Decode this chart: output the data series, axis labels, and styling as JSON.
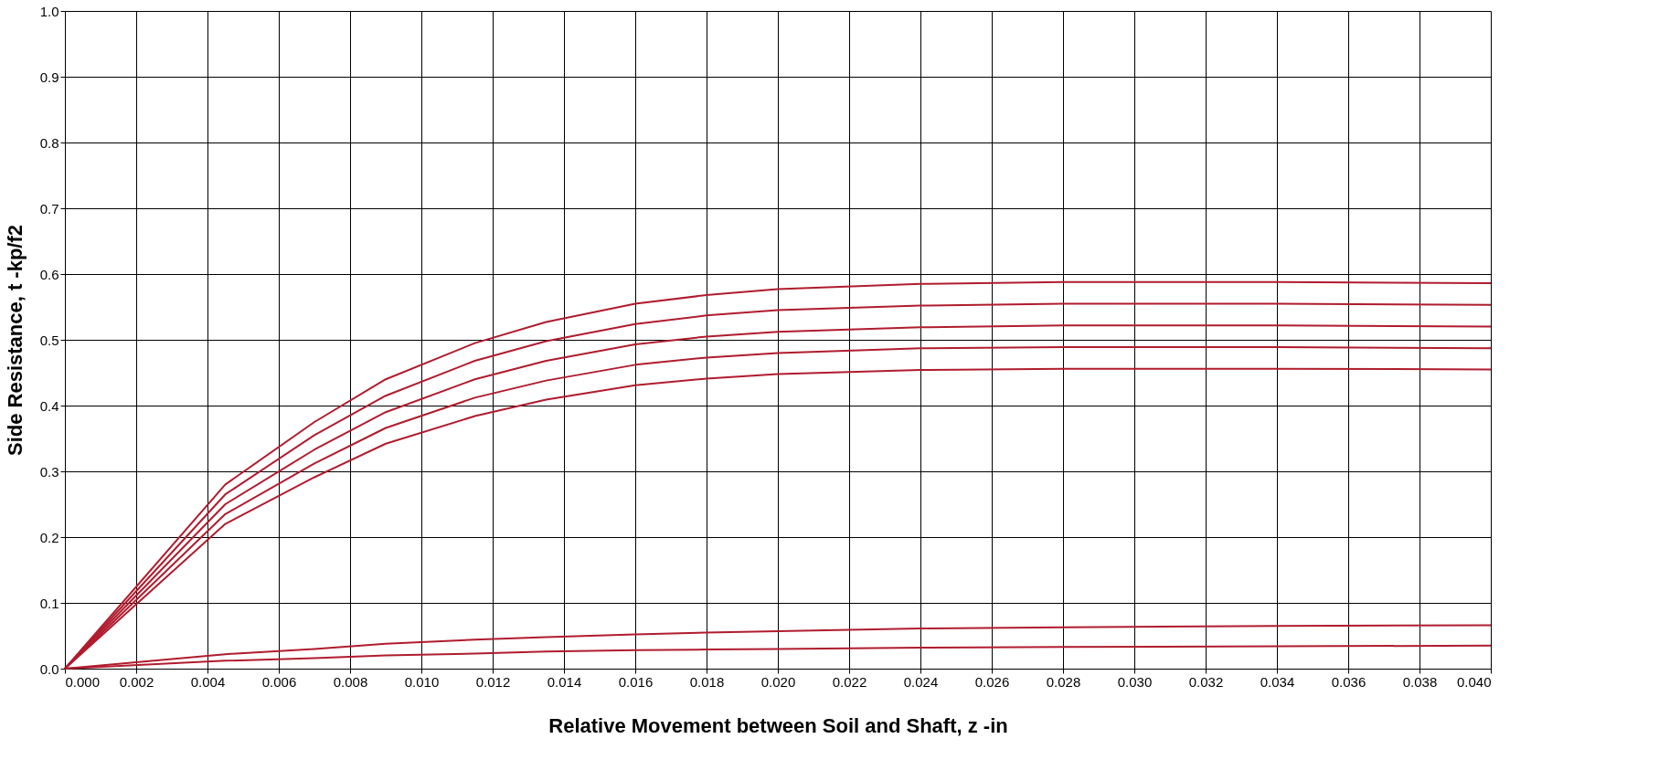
{
  "chart_data": {
    "type": "line",
    "xlabel": "Relative Movement between Soil and Shaft, z -in",
    "ylabel": "Side Resistance, t -kp/f2",
    "x": [
      0,
      0.0045,
      0.007,
      0.009,
      0.0115,
      0.0135,
      0.016,
      0.018,
      0.02,
      0.024,
      0.028,
      0.034,
      0.04
    ],
    "series": [
      {
        "color": "#b01c2e",
        "values": [
          0,
          0.28,
          0.375,
          0.44,
          0.495,
          0.527,
          0.555,
          0.568,
          0.577,
          0.585,
          0.588,
          0.588,
          0.586
        ]
      },
      {
        "color": "#b01c2e",
        "values": [
          0,
          0.265,
          0.355,
          0.415,
          0.468,
          0.498,
          0.524,
          0.537,
          0.545,
          0.552,
          0.555,
          0.555,
          0.553
        ]
      },
      {
        "color": "#b01c2e",
        "values": [
          0,
          0.25,
          0.333,
          0.39,
          0.44,
          0.468,
          0.493,
          0.505,
          0.512,
          0.519,
          0.522,
          0.522,
          0.52
        ]
      },
      {
        "color": "#b01c2e",
        "values": [
          0,
          0.235,
          0.312,
          0.366,
          0.412,
          0.438,
          0.462,
          0.473,
          0.48,
          0.487,
          0.489,
          0.489,
          0.487
        ]
      },
      {
        "color": "#b01c2e",
        "values": [
          0,
          0.22,
          0.291,
          0.342,
          0.384,
          0.409,
          0.431,
          0.441,
          0.448,
          0.454,
          0.456,
          0.456,
          0.455
        ]
      },
      {
        "color": "#b01c2e",
        "values": [
          0,
          0.022,
          0.03,
          0.038,
          0.044,
          0.048,
          0.052,
          0.055,
          0.057,
          0.061,
          0.063,
          0.065,
          0.066
        ]
      },
      {
        "color": "#b01c2e",
        "values": [
          0,
          0.012,
          0.016,
          0.02,
          0.023,
          0.026,
          0.028,
          0.029,
          0.03,
          0.032,
          0.033,
          0.034,
          0.035
        ]
      }
    ],
    "xlim": [
      0,
      0.04
    ],
    "ylim": [
      0,
      1.0
    ],
    "xticks": [
      {
        "value": 0,
        "label": "0.000"
      },
      {
        "value": 0.002,
        "label": "0.002"
      },
      {
        "value": 0.004,
        "label": "0.004"
      },
      {
        "value": 0.006,
        "label": "0.006"
      },
      {
        "value": 0.008,
        "label": "0.008"
      },
      {
        "value": 0.01,
        "label": "0.010"
      },
      {
        "value": 0.012,
        "label": "0.012"
      },
      {
        "value": 0.014,
        "label": "0.014"
      },
      {
        "value": 0.016,
        "label": "0.016"
      },
      {
        "value": 0.018,
        "label": "0.018"
      },
      {
        "value": 0.02,
        "label": "0.020"
      },
      {
        "value": 0.022,
        "label": "0.022"
      },
      {
        "value": 0.024,
        "label": "0.024"
      },
      {
        "value": 0.026,
        "label": "0.026"
      },
      {
        "value": 0.028,
        "label": "0.028"
      },
      {
        "value": 0.03,
        "label": "0.030"
      },
      {
        "value": 0.032,
        "label": "0.032"
      },
      {
        "value": 0.034,
        "label": "0.034"
      },
      {
        "value": 0.036,
        "label": "0.036"
      },
      {
        "value": 0.038,
        "label": "0.038"
      },
      {
        "value": 0.04,
        "label": "0.040"
      }
    ],
    "yticks": [
      {
        "value": 0,
        "label": "0.0"
      },
      {
        "value": 0.1,
        "label": "0.1"
      },
      {
        "value": 0.2,
        "label": "0.2"
      },
      {
        "value": 0.3,
        "label": "0.3"
      },
      {
        "value": 0.4,
        "label": "0.4"
      },
      {
        "value": 0.5,
        "label": "0.5"
      },
      {
        "value": 0.6,
        "label": "0.6"
      },
      {
        "value": 0.7,
        "label": "0.7"
      },
      {
        "value": 0.8,
        "label": "0.8"
      },
      {
        "value": 0.9,
        "label": "0.9"
      },
      {
        "value": 1.0,
        "label": "1.0"
      }
    ],
    "grid": true,
    "line_style": "solid",
    "marker": "none"
  }
}
